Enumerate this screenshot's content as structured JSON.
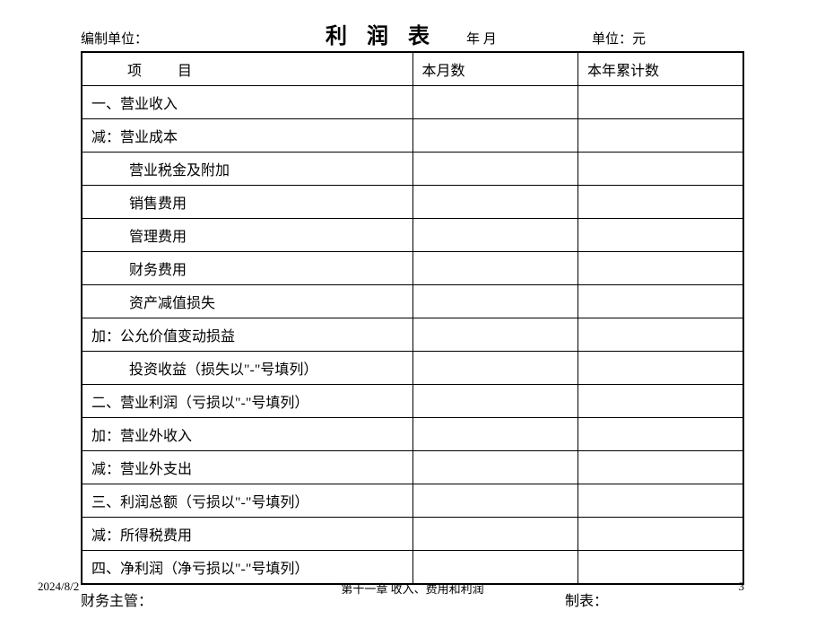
{
  "header": {
    "compiler_label": "编制单位：",
    "title": "利 润 表",
    "date_label": "年  月",
    "unit_label": "单位：元"
  },
  "table": {
    "columns": [
      "项目",
      "本月数",
      "本年累计数"
    ],
    "rows": [
      {
        "label": "一、营业收入",
        "indent": 1
      },
      {
        "label": "减：营业成本",
        "indent": 1
      },
      {
        "label": "营业税金及附加",
        "indent": 2
      },
      {
        "label": "销售费用",
        "indent": 2
      },
      {
        "label": "管理费用",
        "indent": 2
      },
      {
        "label": "财务费用",
        "indent": 2
      },
      {
        "label": "资产减值损失",
        "indent": 2
      },
      {
        "label": "加：公允价值变动损益",
        "indent": 1
      },
      {
        "label": "投资收益（损失以\"-\"号填列）",
        "indent": 2
      },
      {
        "label": "二、营业利润（亏损以\"-\"号填列）",
        "indent": 1
      },
      {
        "label": "加：营业外收入",
        "indent": 1
      },
      {
        "label": "减：营业外支出",
        "indent": 1
      },
      {
        "label": "三、利润总额（亏损以\"-\"号填列）",
        "indent": 1
      },
      {
        "label": "减：所得税费用",
        "indent": 1
      },
      {
        "label": "四、净利润（净亏损以\"-\"号填列）",
        "indent": 1
      }
    ]
  },
  "footer": {
    "supervisor_label": "财务主管：",
    "preparer_label": "制表："
  },
  "page_footer": {
    "date": "2024/8/2",
    "chapter": "第十一章  收入、费用和利润",
    "page_num": "3"
  }
}
